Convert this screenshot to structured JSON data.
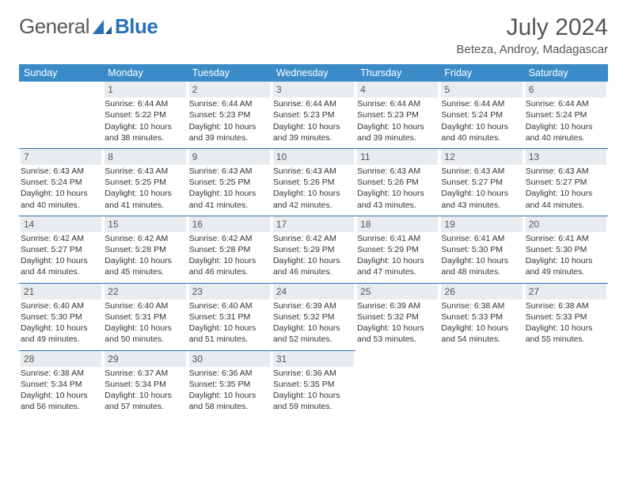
{
  "brand": {
    "word1": "General",
    "word2": "Blue"
  },
  "title": "July 2024",
  "location": "Beteza, Androy, Madagascar",
  "colors": {
    "header_bg": "#3b8bc9",
    "accent": "#2a72b5",
    "daynum_bg": "#e9ecef",
    "text": "#333333",
    "muted": "#555555",
    "bg": "#ffffff"
  },
  "typography": {
    "title_fontsize": 30,
    "body_fontsize": 10.5,
    "header_fontsize": 12.5
  },
  "layout": {
    "cols": 7,
    "rows": 5
  },
  "day_headers": [
    "Sunday",
    "Monday",
    "Tuesday",
    "Wednesday",
    "Thursday",
    "Friday",
    "Saturday"
  ],
  "weeks": [
    [
      null,
      {
        "n": "1",
        "sr": "Sunrise: 6:44 AM",
        "ss": "Sunset: 5:22 PM",
        "dl": "Daylight: 10 hours and 38 minutes."
      },
      {
        "n": "2",
        "sr": "Sunrise: 6:44 AM",
        "ss": "Sunset: 5:23 PM",
        "dl": "Daylight: 10 hours and 39 minutes."
      },
      {
        "n": "3",
        "sr": "Sunrise: 6:44 AM",
        "ss": "Sunset: 5:23 PM",
        "dl": "Daylight: 10 hours and 39 minutes."
      },
      {
        "n": "4",
        "sr": "Sunrise: 6:44 AM",
        "ss": "Sunset: 5:23 PM",
        "dl": "Daylight: 10 hours and 39 minutes."
      },
      {
        "n": "5",
        "sr": "Sunrise: 6:44 AM",
        "ss": "Sunset: 5:24 PM",
        "dl": "Daylight: 10 hours and 40 minutes."
      },
      {
        "n": "6",
        "sr": "Sunrise: 6:44 AM",
        "ss": "Sunset: 5:24 PM",
        "dl": "Daylight: 10 hours and 40 minutes."
      }
    ],
    [
      {
        "n": "7",
        "sr": "Sunrise: 6:43 AM",
        "ss": "Sunset: 5:24 PM",
        "dl": "Daylight: 10 hours and 40 minutes."
      },
      {
        "n": "8",
        "sr": "Sunrise: 6:43 AM",
        "ss": "Sunset: 5:25 PM",
        "dl": "Daylight: 10 hours and 41 minutes."
      },
      {
        "n": "9",
        "sr": "Sunrise: 6:43 AM",
        "ss": "Sunset: 5:25 PM",
        "dl": "Daylight: 10 hours and 41 minutes."
      },
      {
        "n": "10",
        "sr": "Sunrise: 6:43 AM",
        "ss": "Sunset: 5:26 PM",
        "dl": "Daylight: 10 hours and 42 minutes."
      },
      {
        "n": "11",
        "sr": "Sunrise: 6:43 AM",
        "ss": "Sunset: 5:26 PM",
        "dl": "Daylight: 10 hours and 43 minutes."
      },
      {
        "n": "12",
        "sr": "Sunrise: 6:43 AM",
        "ss": "Sunset: 5:27 PM",
        "dl": "Daylight: 10 hours and 43 minutes."
      },
      {
        "n": "13",
        "sr": "Sunrise: 6:43 AM",
        "ss": "Sunset: 5:27 PM",
        "dl": "Daylight: 10 hours and 44 minutes."
      }
    ],
    [
      {
        "n": "14",
        "sr": "Sunrise: 6:42 AM",
        "ss": "Sunset: 5:27 PM",
        "dl": "Daylight: 10 hours and 44 minutes."
      },
      {
        "n": "15",
        "sr": "Sunrise: 6:42 AM",
        "ss": "Sunset: 5:28 PM",
        "dl": "Daylight: 10 hours and 45 minutes."
      },
      {
        "n": "16",
        "sr": "Sunrise: 6:42 AM",
        "ss": "Sunset: 5:28 PM",
        "dl": "Daylight: 10 hours and 46 minutes."
      },
      {
        "n": "17",
        "sr": "Sunrise: 6:42 AM",
        "ss": "Sunset: 5:29 PM",
        "dl": "Daylight: 10 hours and 46 minutes."
      },
      {
        "n": "18",
        "sr": "Sunrise: 6:41 AM",
        "ss": "Sunset: 5:29 PM",
        "dl": "Daylight: 10 hours and 47 minutes."
      },
      {
        "n": "19",
        "sr": "Sunrise: 6:41 AM",
        "ss": "Sunset: 5:30 PM",
        "dl": "Daylight: 10 hours and 48 minutes."
      },
      {
        "n": "20",
        "sr": "Sunrise: 6:41 AM",
        "ss": "Sunset: 5:30 PM",
        "dl": "Daylight: 10 hours and 49 minutes."
      }
    ],
    [
      {
        "n": "21",
        "sr": "Sunrise: 6:40 AM",
        "ss": "Sunset: 5:30 PM",
        "dl": "Daylight: 10 hours and 49 minutes."
      },
      {
        "n": "22",
        "sr": "Sunrise: 6:40 AM",
        "ss": "Sunset: 5:31 PM",
        "dl": "Daylight: 10 hours and 50 minutes."
      },
      {
        "n": "23",
        "sr": "Sunrise: 6:40 AM",
        "ss": "Sunset: 5:31 PM",
        "dl": "Daylight: 10 hours and 51 minutes."
      },
      {
        "n": "24",
        "sr": "Sunrise: 6:39 AM",
        "ss": "Sunset: 5:32 PM",
        "dl": "Daylight: 10 hours and 52 minutes."
      },
      {
        "n": "25",
        "sr": "Sunrise: 6:39 AM",
        "ss": "Sunset: 5:32 PM",
        "dl": "Daylight: 10 hours and 53 minutes."
      },
      {
        "n": "26",
        "sr": "Sunrise: 6:38 AM",
        "ss": "Sunset: 5:33 PM",
        "dl": "Daylight: 10 hours and 54 minutes."
      },
      {
        "n": "27",
        "sr": "Sunrise: 6:38 AM",
        "ss": "Sunset: 5:33 PM",
        "dl": "Daylight: 10 hours and 55 minutes."
      }
    ],
    [
      {
        "n": "28",
        "sr": "Sunrise: 6:38 AM",
        "ss": "Sunset: 5:34 PM",
        "dl": "Daylight: 10 hours and 56 minutes."
      },
      {
        "n": "29",
        "sr": "Sunrise: 6:37 AM",
        "ss": "Sunset: 5:34 PM",
        "dl": "Daylight: 10 hours and 57 minutes."
      },
      {
        "n": "30",
        "sr": "Sunrise: 6:36 AM",
        "ss": "Sunset: 5:35 PM",
        "dl": "Daylight: 10 hours and 58 minutes."
      },
      {
        "n": "31",
        "sr": "Sunrise: 6:36 AM",
        "ss": "Sunset: 5:35 PM",
        "dl": "Daylight: 10 hours and 59 minutes."
      },
      null,
      null,
      null
    ]
  ]
}
